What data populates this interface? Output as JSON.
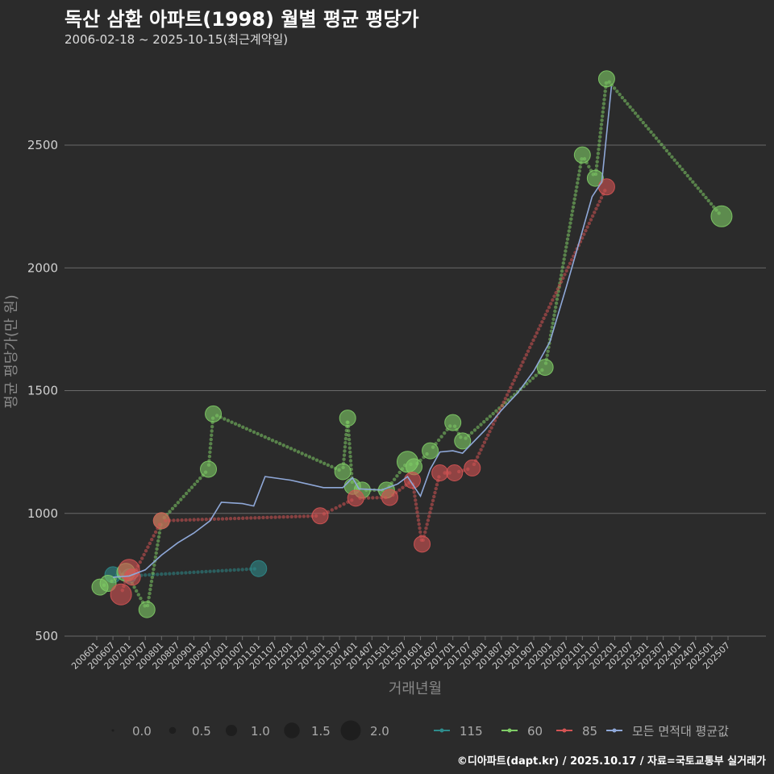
{
  "header": {
    "title": "독산 삼환 아파트(1998) 월별 평균 평당가",
    "subtitle": "2006-02-18 ~ 2025-10-15(최근계약일)"
  },
  "footer": {
    "credit": "©디아파트(dapt.kr) / 2025.10.17 / 자료=국토교통부 실거래가"
  },
  "colors": {
    "background": "#2b2b2b",
    "grid": "#6a6a6a",
    "series_115": "#2e8b8b",
    "series_60": "#7fcc66",
    "series_85": "#d45454",
    "series_avg": "#8fa8d8"
  },
  "chart_data": {
    "type": "scatter",
    "title": "독산 삼환 아파트(1998) 월별 평균 평당가",
    "xlabel": "거래년월",
    "ylabel": "평균 평당가(만 원)",
    "ylim": [
      500,
      2800
    ],
    "yticks": [
      500,
      1000,
      1500,
      2000,
      2500
    ],
    "xlim": [
      2006.0,
      2025.95
    ],
    "xticks": [
      "200601",
      "200607",
      "200701",
      "200707",
      "200801",
      "200807",
      "200901",
      "200907",
      "201001",
      "201007",
      "201101",
      "201107",
      "201201",
      "201207",
      "201301",
      "201307",
      "201401",
      "201407",
      "201501",
      "201507",
      "201601",
      "201607",
      "201701",
      "201707",
      "201801",
      "201807",
      "201901",
      "201907",
      "202001",
      "202007",
      "202101",
      "202107",
      "202201",
      "202207",
      "202301",
      "202307",
      "202401",
      "202407",
      "202501",
      "202507"
    ],
    "size_legend": {
      "title": "",
      "entries": [
        {
          "label": "0.0",
          "value": 0.0
        },
        {
          "label": "0.5",
          "value": 0.5
        },
        {
          "label": "1.0",
          "value": 1.0
        },
        {
          "label": "1.5",
          "value": 1.5
        },
        {
          "label": "2.0",
          "value": 2.0
        }
      ]
    },
    "series": [
      {
        "name": "115",
        "color": "#2e8b8b",
        "points": [
          [
            2006.5,
            750,
            1.0
          ],
          [
            2007.0,
            745,
            0.8
          ],
          [
            2011.0,
            775,
            1.0
          ]
        ]
      },
      {
        "name": "60",
        "color": "#7fcc66",
        "points": [
          [
            2006.1,
            700,
            1.0
          ],
          [
            2006.35,
            715,
            1.0
          ],
          [
            2006.9,
            760,
            1.2
          ],
          [
            2007.55,
            608,
            1.0
          ],
          [
            2008.0,
            970,
            1.0
          ],
          [
            2009.45,
            1180,
            1.0
          ],
          [
            2009.6,
            1405,
            1.0
          ],
          [
            2013.6,
            1170,
            1.0
          ],
          [
            2013.75,
            1388,
            1.0
          ],
          [
            2013.9,
            1110,
            1.0
          ],
          [
            2014.2,
            1095,
            1.0
          ],
          [
            2014.95,
            1095,
            1.0
          ],
          [
            2015.6,
            1210,
            1.5
          ],
          [
            2015.8,
            1190,
            1.0
          ],
          [
            2016.3,
            1255,
            1.0
          ],
          [
            2017.0,
            1370,
            1.0
          ],
          [
            2017.3,
            1295,
            1.0
          ],
          [
            2019.85,
            1595,
            1.0
          ],
          [
            2021.0,
            2460,
            1.0
          ],
          [
            2021.4,
            2365,
            1.0
          ],
          [
            2021.75,
            2770,
            1.0
          ],
          [
            2025.3,
            2210,
            1.5
          ]
        ]
      },
      {
        "name": "85",
        "color": "#d45454",
        "points": [
          [
            2006.75,
            670,
            1.5
          ],
          [
            2007.0,
            770,
            1.5
          ],
          [
            2007.1,
            740,
            1.0
          ],
          [
            2008.0,
            970,
            1.0
          ],
          [
            2012.9,
            990,
            1.0
          ],
          [
            2014.0,
            1062,
            1.0
          ],
          [
            2015.05,
            1065,
            1.0
          ],
          [
            2015.75,
            1135,
            1.0
          ],
          [
            2016.05,
            875,
            1.0
          ],
          [
            2016.6,
            1165,
            1.0
          ],
          [
            2017.05,
            1165,
            1.0
          ],
          [
            2017.6,
            1185,
            1.0
          ],
          [
            2021.75,
            2330,
            1.0
          ]
        ]
      },
      {
        "name": "모든 면적대 평균값",
        "color": "#8fa8d8",
        "points": [
          [
            2006.5,
            740
          ],
          [
            2007.0,
            745
          ],
          [
            2007.5,
            770
          ],
          [
            2008.0,
            830
          ],
          [
            2008.5,
            880
          ],
          [
            2009.0,
            920
          ],
          [
            2009.5,
            970
          ],
          [
            2009.85,
            1045
          ],
          [
            2010.5,
            1040
          ],
          [
            2010.85,
            1030
          ],
          [
            2011.2,
            1150
          ],
          [
            2012.0,
            1135
          ],
          [
            2012.5,
            1120
          ],
          [
            2013.0,
            1105
          ],
          [
            2013.6,
            1105
          ],
          [
            2013.9,
            1145
          ],
          [
            2014.1,
            1100
          ],
          [
            2014.8,
            1095
          ],
          [
            2015.3,
            1120
          ],
          [
            2015.6,
            1150
          ],
          [
            2016.0,
            1070
          ],
          [
            2016.3,
            1180
          ],
          [
            2016.6,
            1250
          ],
          [
            2017.0,
            1255
          ],
          [
            2017.3,
            1245
          ],
          [
            2018.0,
            1340
          ],
          [
            2018.5,
            1420
          ],
          [
            2019.0,
            1490
          ],
          [
            2019.5,
            1580
          ],
          [
            2020.0,
            1700
          ],
          [
            2020.5,
            1920
          ],
          [
            2021.0,
            2150
          ],
          [
            2021.3,
            2290
          ],
          [
            2021.6,
            2350
          ],
          [
            2021.9,
            2740
          ]
        ]
      }
    ]
  }
}
